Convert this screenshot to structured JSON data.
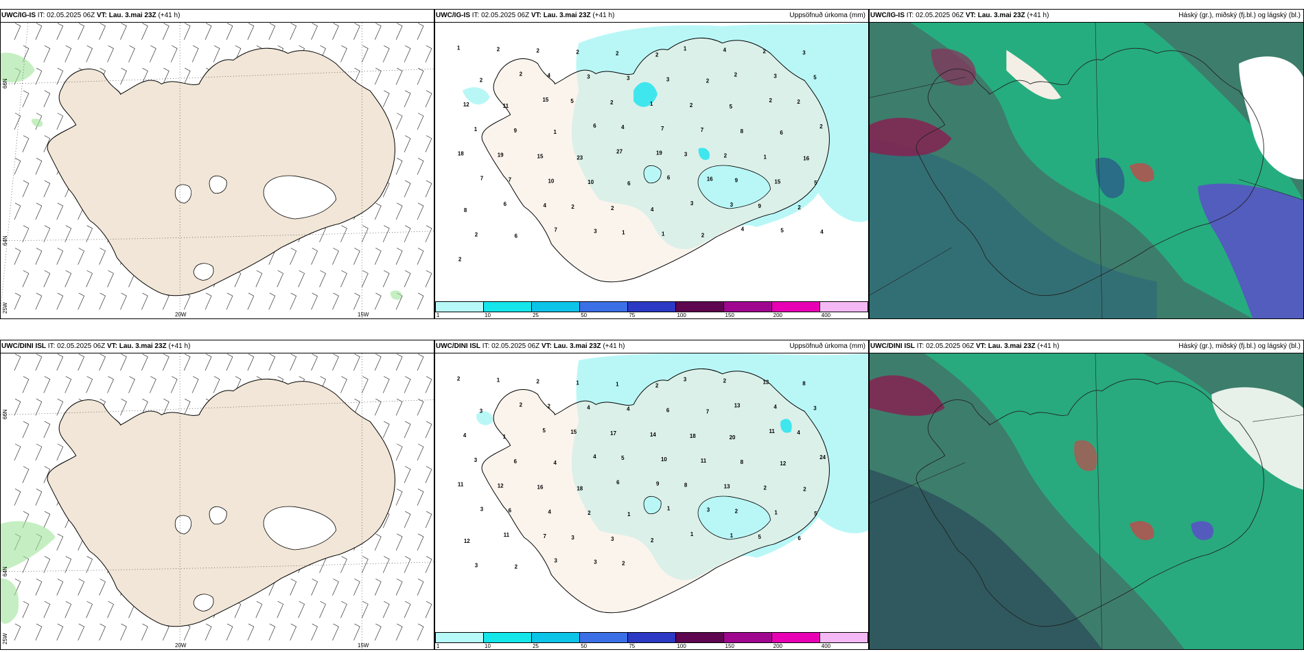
{
  "rows": [
    {
      "model": "UWC/IG-IS",
      "it_label": "IT:",
      "it_value": "02.05.2025 06Z",
      "vt_label": "VT:",
      "vt_value": "Lau. 3.mai 23Z",
      "lead": "(+41 h)",
      "precip": {
        "amounts": [
          1,
          2,
          2,
          2,
          2,
          2,
          1,
          4,
          2,
          3,
          2,
          2,
          4,
          3,
          3,
          3,
          2,
          2,
          3,
          5,
          12,
          11,
          15,
          5,
          2,
          1,
          2,
          5,
          2,
          2,
          1,
          9,
          1,
          6,
          4,
          7,
          7,
          8,
          6,
          2,
          18,
          19,
          15,
          23,
          27,
          19,
          3,
          2,
          1,
          16,
          7,
          7,
          10,
          10,
          6,
          6,
          16,
          9,
          15,
          5,
          8,
          6,
          4,
          2,
          2,
          4,
          3,
          3,
          9,
          2,
          2,
          6,
          7,
          3,
          1,
          1,
          2,
          4,
          5,
          4,
          2
        ]
      }
    },
    {
      "model": "UWC/DINI ISL",
      "it_label": "IT:",
      "it_value": "02.05.2025 06Z",
      "vt_label": "VT:",
      "vt_value": "Lau. 3.mai 23Z",
      "lead": "(+41 h)",
      "precip": {
        "amounts": [
          2,
          1,
          2,
          1,
          1,
          2,
          3,
          2,
          13,
          8,
          3,
          2,
          2,
          4,
          4,
          6,
          7,
          13,
          4,
          3,
          4,
          1,
          5,
          15,
          17,
          14,
          18,
          20,
          11,
          4,
          3,
          6,
          4,
          4,
          5,
          10,
          11,
          8,
          12,
          24,
          11,
          12,
          16,
          18,
          6,
          9,
          8,
          13,
          2,
          2,
          3,
          6,
          4,
          2,
          1,
          1,
          3,
          2,
          1,
          5,
          12,
          11,
          7,
          3,
          3,
          2,
          1,
          1,
          5,
          6,
          3,
          2,
          3,
          3,
          2
        ]
      }
    }
  ],
  "titles": {
    "precip": "Uppsöfnuð úrkoma (mm)",
    "cloud": "Háský (gr.), miðský (fj.bl.) og lágský (bl.)"
  },
  "axis_labels": {
    "lat66": "66N",
    "lat64": "64N",
    "lon25": "25W",
    "lon20": "20W",
    "lon15": "15W"
  },
  "colorbar": {
    "ticks": [
      "1",
      "10",
      "25",
      "50",
      "75",
      "100",
      "150",
      "200",
      "400"
    ],
    "colors": [
      "#b7f8f8",
      "#14e6ea",
      "#0bc4e8",
      "#3b6fe6",
      "#2b39c4",
      "#5e0650",
      "#a0078f",
      "#e800b4",
      "#f4b8f4"
    ]
  },
  "colors": {
    "land": "#f1e6d7",
    "sea": "#ffffff",
    "precip_light": "#b9f7f7",
    "precip_mid": "#19e3ee",
    "cloud_high": "#1fbe86",
    "cloud_mid": "#3a7d6e",
    "cloud_low": "#2a5d8a"
  }
}
